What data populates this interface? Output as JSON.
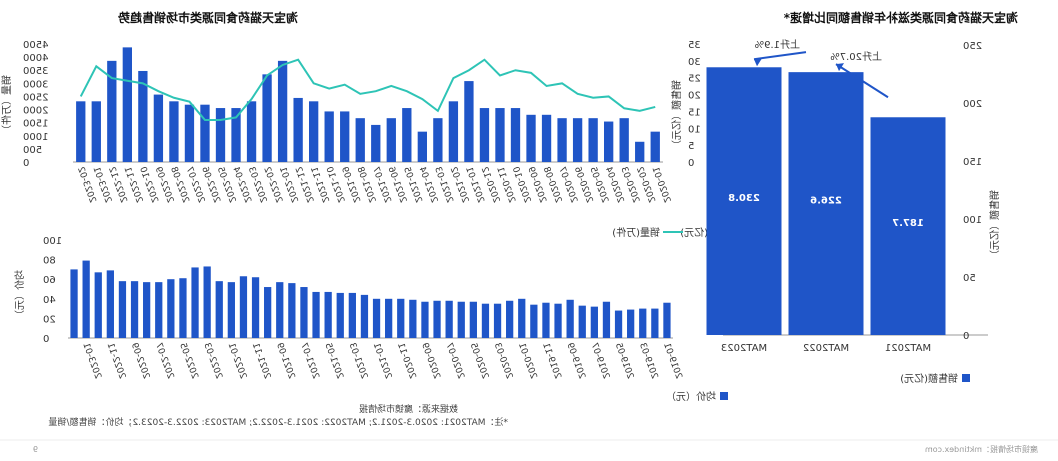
{
  "left_chart": {
    "title": "淘宝天猫药食同源类滋补年销售额同比增速*",
    "legend": "销售额(亿元)",
    "ylabel": "销售额（亿元）",
    "annotations": [
      "上升1.9%",
      "上升20.7%"
    ]
  },
  "top_chart": {
    "title": "淘宝天猫药食同源类市场销售趋势",
    "legend_bar": "销售额(亿元)",
    "legend_line": "销量(万件)",
    "y_left_label": "销量（万件）",
    "y_right_label": "销售额（亿元）"
  },
  "bottom_chart": {
    "legend": "均价（元）",
    "y_right_label": "均价（元）"
  },
  "notes": {
    "source": "数据来源：魔镜市场情报",
    "footnote": "*注：MAT2021: 2020.3-2021.2; MAT2022: 2021.3-2022.2; MAT2023: 2022.3-2023.2；均价：销售额/销量",
    "watermark": "魔镜市场情报：mktindex.com",
    "page_number": "9"
  },
  "colors": {
    "bar": "#1f55c8",
    "line": "#2ec4b6",
    "arrow": "#1f55c8"
  },
  "chart_data": [
    {
      "type": "bar",
      "title": "淘宝天猫药食同源类滋补年销售额同比增速*",
      "categories": [
        "MAT2021",
        "MAT2022",
        "MAT2023"
      ],
      "series": [
        {
          "name": "销售额(亿元)",
          "values": [
            187.7,
            226.6,
            230.8
          ]
        }
      ],
      "ylabel": "销售额（亿元）",
      "ylim": [
        0,
        250
      ],
      "yticks": [
        0,
        50,
        100,
        150,
        200,
        250
      ],
      "annotations": [
        {
          "from": "MAT2021",
          "to": "MAT2022",
          "text": "上升20.7%"
        },
        {
          "from": "MAT2022",
          "to": "MAT2023",
          "text": "上升1.9%"
        }
      ]
    },
    {
      "type": "bar",
      "title": "淘宝天猫药食同源类市场销售趋势",
      "categories": [
        "2020-01",
        "2020-02",
        "2020-03",
        "2020-04",
        "2020-05",
        "2020-06",
        "2020-07",
        "2020-08",
        "2020-09",
        "2020-10",
        "2020-11",
        "2020-12",
        "2021-01",
        "2021-02",
        "2021-03",
        "2021-04",
        "2021-05",
        "2021-06",
        "2021-07",
        "2021-08",
        "2021-09",
        "2021-10",
        "2021-11",
        "2021-12",
        "2022-01",
        "2022-02",
        "2022-03",
        "2022-04",
        "2022-05",
        "2022-06",
        "2022-07",
        "2022-08",
        "2022-09",
        "2022-10",
        "2022-11",
        "2022-12",
        "2023-01",
        "2023-02"
      ],
      "category_labels_shown": [
        "2020-01",
        "2020-02",
        "2020-03",
        "2020-04",
        "2020-05",
        "2020-06",
        "2020-07",
        "2020-08",
        "2020-09",
        "2020-10",
        "2020-11",
        "2020-12",
        "2021-01",
        "2021-02",
        "2021-03",
        "2021-04",
        "2021-05",
        "2021-06",
        "2021-07",
        "2021-08",
        "2021-09",
        "2021-10",
        "2021-11",
        "2021-12",
        "2022-01",
        "2022-02",
        "2022-03",
        "2022-04",
        "2022-05",
        "2022-06",
        "2022-07",
        "2022-08",
        "2022-09",
        "2022-10",
        "2022-11",
        "2022-12",
        "2023-01",
        "2023-02"
      ],
      "series": [
        {
          "name": "销售额(亿元)",
          "kind": "bar",
          "axis": "right",
          "values": [
            9,
            6,
            13,
            12,
            13,
            13,
            13,
            14,
            14,
            16,
            16,
            16,
            24,
            18,
            13,
            9,
            16,
            13,
            11,
            13,
            15,
            15,
            18,
            19,
            30,
            26,
            18,
            16,
            16,
            17,
            17,
            18,
            20,
            27,
            34,
            30,
            18,
            18
          ]
        },
        {
          "name": "销量(万件)",
          "kind": "line",
          "axis": "left",
          "values": [
            2100,
            1950,
            2050,
            2500,
            2450,
            2600,
            3000,
            2900,
            3400,
            3500,
            3300,
            3900,
            3500,
            3200,
            1950,
            2400,
            2700,
            2900,
            2700,
            2600,
            2950,
            2800,
            3000,
            3900,
            3700,
            3300,
            2400,
            1700,
            1600,
            1600,
            2300,
            2450,
            2700,
            3000,
            3100,
            3200,
            3650,
            2500
          ]
        }
      ],
      "y_left": {
        "label": "销量（万件）",
        "ylim": [
          0,
          4500
        ],
        "ticks": [
          0,
          500,
          1000,
          1500,
          2000,
          2500,
          3000,
          3500,
          4000,
          4500
        ]
      },
      "y_right": {
        "label": "销售额（亿元）",
        "ylim": [
          0,
          35
        ],
        "ticks": [
          0,
          5,
          10,
          15,
          20,
          25,
          30,
          35
        ]
      },
      "legend": [
        "销售额(亿元)",
        "销量(万件)"
      ]
    },
    {
      "type": "bar",
      "categories": [
        "2019-01",
        "2019-02",
        "2019-03",
        "2019-04",
        "2019-05",
        "2019-06",
        "2019-07",
        "2019-08",
        "2019-09",
        "2019-10",
        "2019-11",
        "2019-12",
        "2020-01",
        "2020-02",
        "2020-03",
        "2020-04",
        "2020-05",
        "2020-06",
        "2020-07",
        "2020-08",
        "2020-09",
        "2020-10",
        "2020-11",
        "2020-12",
        "2021-01",
        "2021-02",
        "2021-03",
        "2021-04",
        "2021-05",
        "2021-06",
        "2021-07",
        "2021-08",
        "2021-09",
        "2021-10",
        "2021-11",
        "2021-12",
        "2022-01",
        "2022-02",
        "2022-03",
        "2022-04",
        "2022-05",
        "2022-06",
        "2022-07",
        "2022-08",
        "2022-09",
        "2022-10",
        "2022-11",
        "2022-12",
        "2023-01",
        "2023-02"
      ],
      "category_labels_shown": [
        "2019-01",
        "2019-03",
        "2019-05",
        "2019-07",
        "2019-09",
        "2019-11",
        "2020-01",
        "2020-03",
        "2020-05",
        "2020-07",
        "2020-09",
        "2020-11",
        "2021-01",
        "2021-03",
        "2021-05",
        "2021-07",
        "2021-09",
        "2021-11",
        "2022-01",
        "2022-03",
        "2022-05",
        "2022-07",
        "2022-09",
        "2022-11",
        "2023-01"
      ],
      "series": [
        {
          "name": "均价（元）",
          "values": [
            36,
            30,
            30,
            29,
            28,
            37,
            32,
            33,
            39,
            35,
            36,
            34,
            40,
            38,
            35,
            35,
            37,
            37,
            38,
            38,
            37,
            39,
            40,
            40,
            40,
            44,
            46,
            46,
            47,
            47,
            52,
            56,
            57,
            52,
            62,
            63,
            57,
            58,
            73,
            72,
            61,
            60,
            57,
            57,
            58,
            58,
            69,
            67,
            79,
            70
          ]
        }
      ],
      "ylabel": "均价（元）",
      "ylim": [
        0,
        100
      ],
      "yticks": [
        0,
        20,
        40,
        60,
        80,
        100
      ]
    }
  ]
}
